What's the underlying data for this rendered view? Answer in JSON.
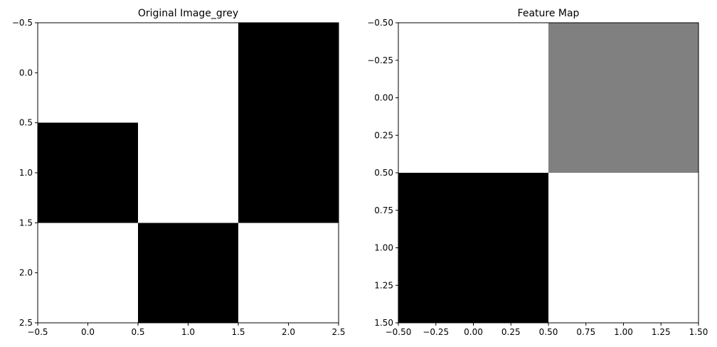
{
  "chart_data": [
    {
      "type": "heatmap",
      "title": "Original Image_grey",
      "xlabel": "",
      "ylabel": "",
      "colormap": "gray",
      "value_range": [
        0,
        1
      ],
      "xlim": [
        -0.5,
        2.5
      ],
      "ylim": [
        2.5,
        -0.5
      ],
      "xticks": [
        -0.5,
        0.0,
        0.5,
        1.0,
        1.5,
        2.0,
        2.5
      ],
      "yticks": [
        -0.5,
        0.0,
        0.5,
        1.0,
        1.5,
        2.0,
        2.5
      ],
      "xtick_labels": [
        "−0.5",
        "0.0",
        "0.5",
        "1.0",
        "1.5",
        "2.0",
        "2.5"
      ],
      "ytick_labels": [
        "−0.5",
        "0.0",
        "0.5",
        "1.0",
        "1.5",
        "2.0",
        "2.5"
      ],
      "values": [
        [
          1,
          1,
          0
        ],
        [
          0,
          1,
          0
        ],
        [
          1,
          0,
          1
        ]
      ]
    },
    {
      "type": "heatmap",
      "title": "Feature Map",
      "xlabel": "",
      "ylabel": "",
      "colormap": "gray",
      "value_range": [
        0,
        1
      ],
      "xlim": [
        -0.5,
        1.5
      ],
      "ylim": [
        1.5,
        -0.5
      ],
      "xticks": [
        -0.5,
        -0.25,
        0.0,
        0.25,
        0.5,
        0.75,
        1.0,
        1.25,
        1.5
      ],
      "yticks": [
        -0.5,
        -0.25,
        0.0,
        0.25,
        0.5,
        0.75,
        1.0,
        1.25,
        1.5
      ],
      "xtick_labels": [
        "−0.50",
        "−0.25",
        "0.00",
        "0.25",
        "0.50",
        "0.75",
        "1.00",
        "1.25",
        "1.50"
      ],
      "ytick_labels": [
        "−0.50",
        "−0.25",
        "0.00",
        "0.25",
        "0.50",
        "0.75",
        "1.00",
        "1.25",
        "1.50"
      ],
      "values": [
        [
          1,
          0.5
        ],
        [
          0,
          1
        ]
      ]
    }
  ]
}
